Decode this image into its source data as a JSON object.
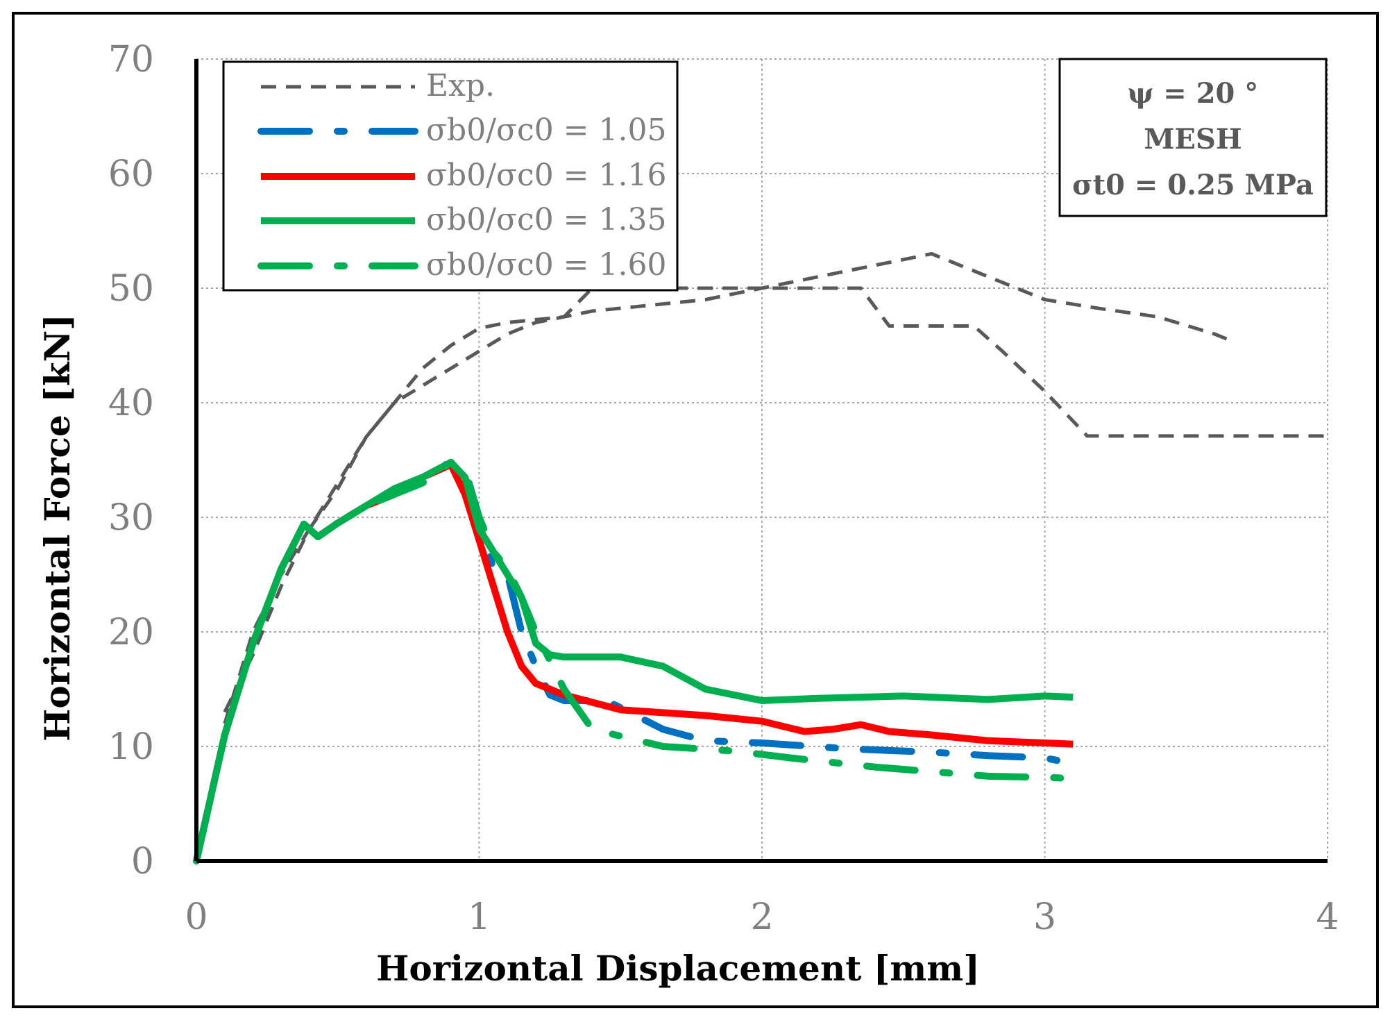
{
  "chart_data": {
    "type": "line",
    "title": "",
    "xlabel": "Horizontal Displacement [mm]",
    "ylabel": "Horizontal Force [kN]",
    "xlim": [
      0,
      4
    ],
    "ylim": [
      0,
      70
    ],
    "xticks": [
      0,
      1,
      2,
      3,
      4
    ],
    "yticks": [
      0,
      10,
      20,
      30,
      40,
      50,
      60,
      70
    ],
    "grid": true,
    "legend_position": "top-left",
    "colors": {
      "exp": "#595959",
      "blue": "#0070c0",
      "red": "#ff0000",
      "green": "#00b050",
      "tick": "#7f7f7f"
    },
    "annotation": [
      "ψ = 20 °",
      "MESH",
      "σt0 = 0.25 MPa"
    ],
    "series": [
      {
        "name": "Exp.",
        "style": "exp",
        "color": "#595959",
        "x": [
          0.1,
          0.2,
          0.3,
          0.4,
          0.5,
          0.6,
          0.7,
          0.8,
          0.9,
          1.0,
          1.1,
          1.2,
          1.3,
          1.4,
          1.6,
          1.8,
          2.0,
          2.2,
          2.4,
          2.5,
          2.6,
          2.8,
          3.0,
          3.2,
          3.4,
          3.6,
          3.65
        ],
        "values": [
          12,
          20,
          25,
          29,
          33,
          37,
          40,
          41.5,
          43,
          44.5,
          46,
          47,
          47.5,
          48,
          48.5,
          49,
          50,
          51,
          52,
          52.5,
          53,
          51,
          49,
          48.2,
          47.5,
          46,
          45.5
        ]
      },
      {
        "name": "Exp.",
        "style": "exp",
        "color": "#595959",
        "x": [
          0.1,
          0.2,
          0.3,
          0.4,
          0.5,
          0.6,
          0.7,
          0.8,
          0.9,
          1.0,
          1.1,
          1.3,
          1.4,
          1.6,
          1.9,
          2.35,
          2.45,
          2.75,
          2.85,
          3.0,
          3.15,
          4.0
        ],
        "values": [
          13,
          18,
          24,
          29,
          32.5,
          37,
          40,
          43,
          45,
          46.5,
          47,
          47.5,
          50,
          50,
          50,
          50,
          46.7,
          46.7,
          44.5,
          41,
          37.1,
          37.1
        ]
      },
      {
        "name": "σb0/σc0 = 1.05",
        "style": "dashdot",
        "color": "#0070c0",
        "x": [
          0,
          0.1,
          0.2,
          0.3,
          0.38,
          0.43,
          0.5,
          0.6,
          0.7,
          0.8,
          0.88,
          0.95,
          1.0,
          1.05,
          1.1,
          1.15,
          1.2,
          1.25,
          1.3,
          1.45,
          1.65,
          1.8,
          1.9,
          2.0,
          2.3,
          2.6,
          2.8,
          3.0,
          3.1
        ],
        "values": [
          0,
          11,
          19,
          25.5,
          29.4,
          28.3,
          29.5,
          31,
          32,
          33.5,
          34.6,
          34.2,
          30,
          25.5,
          25,
          20,
          17,
          14.5,
          14,
          14,
          11.5,
          10.5,
          10.4,
          10.3,
          9.8,
          9.5,
          9.2,
          9,
          8.5
        ]
      },
      {
        "name": "σb0/σc0 = 1.16",
        "style": "solid",
        "color": "#ff0000",
        "x": [
          0,
          0.1,
          0.2,
          0.3,
          0.38,
          0.43,
          0.5,
          0.6,
          0.7,
          0.8,
          0.9,
          0.95,
          1.0,
          1.05,
          1.1,
          1.15,
          1.2,
          1.3,
          1.5,
          1.8,
          2.0,
          2.15,
          2.25,
          2.35,
          2.45,
          2.6,
          2.8,
          3.0,
          3.1
        ],
        "values": [
          0,
          11,
          19,
          25.5,
          29.4,
          28.3,
          29.5,
          31,
          32,
          33.5,
          34.6,
          32,
          28,
          24,
          20,
          17,
          15.5,
          14.5,
          13.2,
          12.7,
          12.2,
          11.3,
          11.5,
          11.9,
          11.3,
          11,
          10.5,
          10.3,
          10.2
        ]
      },
      {
        "name": "σb0/σc0 = 1.35",
        "style": "solid",
        "color": "#00b050",
        "x": [
          0,
          0.1,
          0.2,
          0.3,
          0.38,
          0.43,
          0.5,
          0.6,
          0.7,
          0.8,
          0.9,
          0.95,
          1.0,
          1.05,
          1.1,
          1.15,
          1.2,
          1.25,
          1.3,
          1.5,
          1.65,
          1.8,
          2.0,
          2.2,
          2.5,
          2.7,
          2.8,
          3.0,
          3.1
        ],
        "values": [
          0,
          11,
          19,
          25.5,
          29.4,
          28.3,
          29.5,
          31,
          32.5,
          33.5,
          34.8,
          33.5,
          29,
          27,
          25,
          23,
          19,
          18,
          17.8,
          17.8,
          17,
          15,
          14,
          14.2,
          14.4,
          14.2,
          14.1,
          14.4,
          14.3
        ]
      },
      {
        "name": "σb0/σc0 = 1.60",
        "style": "dashdot",
        "color": "#00b050",
        "x": [
          0,
          0.1,
          0.2,
          0.3,
          0.38,
          0.43,
          0.5,
          0.6,
          0.7,
          0.8,
          0.9,
          0.95,
          1.0,
          1.05,
          1.1,
          1.15,
          1.2,
          1.25,
          1.3,
          1.4,
          1.55,
          1.65,
          1.9,
          2.1,
          2.4,
          2.6,
          2.8,
          3.0,
          3.1
        ],
        "values": [
          0,
          11,
          19,
          25.5,
          29.4,
          28.3,
          29.5,
          31,
          32,
          33,
          34.8,
          34,
          30,
          27,
          25.5,
          23,
          20,
          17.5,
          15,
          11.5,
          10.6,
          10,
          9.6,
          9,
          8.2,
          7.8,
          7.4,
          7.3,
          7.2
        ]
      }
    ]
  }
}
